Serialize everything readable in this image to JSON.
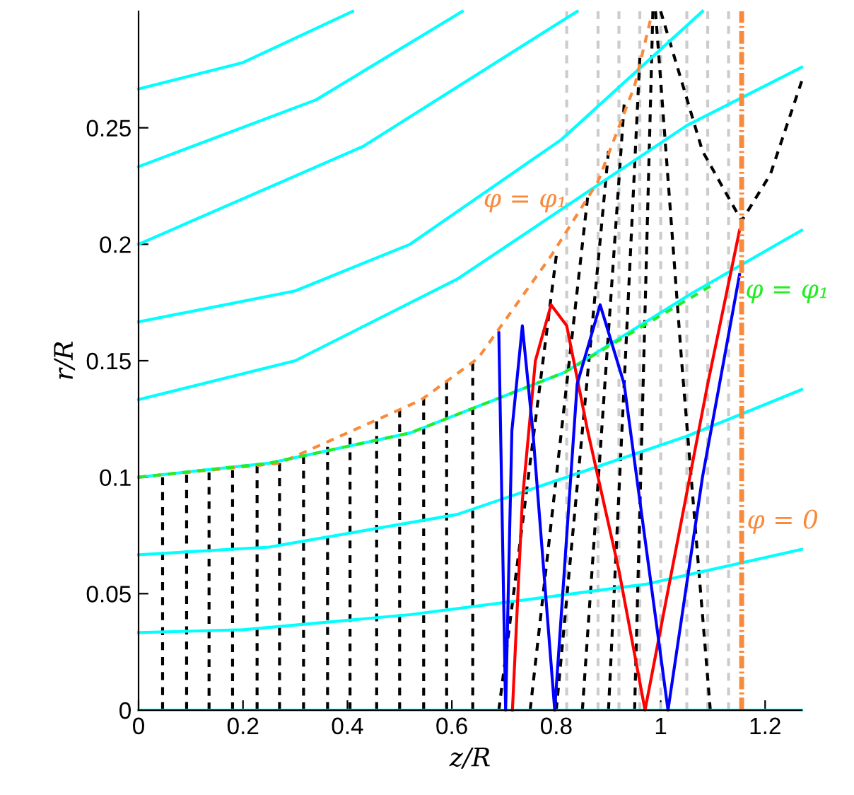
{
  "chart_data": {
    "type": "line",
    "xlabel": "z/R",
    "ylabel": "r/R",
    "xlim": [
      0,
      1.27
    ],
    "ylim": [
      0,
      0.3
    ],
    "xticks": [
      0,
      0.2,
      0.4,
      0.6,
      0.8,
      1,
      1.2
    ],
    "yticks": [
      0,
      0.05,
      0.1,
      0.15,
      0.2,
      0.25
    ],
    "grid": false,
    "legend": false,
    "ref_lines": [
      {
        "axis": "x",
        "value": 1.155,
        "color": "#f98a3c",
        "line_style": "dashdot"
      }
    ],
    "annotations": [
      "φ = 0"
    ],
    "series": [
      {
        "color": "#cccccc",
        "line_style": "dashed",
        "x": [
          0.82,
          0.82
        ],
        "values": [
          0,
          0.3
        ]
      },
      {
        "color": "#cccccc",
        "line_style": "dashed",
        "x": [
          0.88,
          0.88
        ],
        "values": [
          0,
          0.3
        ]
      },
      {
        "color": "#cccccc",
        "line_style": "dashed",
        "x": [
          0.92,
          0.92
        ],
        "values": [
          0,
          0.3
        ]
      },
      {
        "color": "#cccccc",
        "line_style": "dashed",
        "x": [
          0.96,
          0.96
        ],
        "values": [
          0,
          0.3
        ]
      },
      {
        "color": "#cccccc",
        "line_style": "dashed",
        "x": [
          1.0,
          1.0
        ],
        "values": [
          0,
          0.3
        ]
      },
      {
        "color": "#cccccc",
        "line_style": "dashed",
        "x": [
          1.05,
          1.05
        ],
        "values": [
          0,
          0.3
        ]
      },
      {
        "color": "#cccccc",
        "line_style": "dashed",
        "x": [
          1.09,
          1.09
        ],
        "values": [
          0,
          0.3
        ]
      },
      {
        "color": "#cccccc",
        "line_style": "dashed",
        "x": [
          1.13,
          1.13
        ],
        "values": [
          0,
          0.3
        ]
      },
      {
        "color": "#000000",
        "line_style": "dashed",
        "x": [
          0.046,
          0.046
        ],
        "values": [
          0,
          0.1
        ]
      },
      {
        "color": "#000000",
        "line_style": "dashed",
        "x": [
          0.092,
          0.092
        ],
        "values": [
          0,
          0.101
        ]
      },
      {
        "color": "#000000",
        "line_style": "dashed",
        "x": [
          0.135,
          0.135
        ],
        "values": [
          0,
          0.102
        ]
      },
      {
        "color": "#000000",
        "line_style": "dashed",
        "x": [
          0.18,
          0.18
        ],
        "values": [
          0,
          0.103
        ]
      },
      {
        "color": "#000000",
        "line_style": "dashed",
        "x": [
          0.227,
          0.227
        ],
        "values": [
          0,
          0.105
        ]
      },
      {
        "color": "#000000",
        "line_style": "dashed",
        "x": [
          0.27,
          0.27
        ],
        "values": [
          0,
          0.106
        ]
      },
      {
        "color": "#000000",
        "line_style": "dashed",
        "x": [
          0.316,
          0.316
        ],
        "values": [
          0,
          0.109
        ]
      },
      {
        "color": "#000000",
        "line_style": "dashed",
        "x": [
          0.362,
          0.362
        ],
        "values": [
          0,
          0.113
        ]
      },
      {
        "color": "#000000",
        "line_style": "dashed",
        "x": [
          0.405,
          0.405
        ],
        "values": [
          0,
          0.117
        ]
      },
      {
        "color": "#000000",
        "line_style": "dashed",
        "x": [
          0.456,
          0.456
        ],
        "values": [
          0,
          0.124
        ]
      },
      {
        "color": "#000000",
        "line_style": "dashed",
        "x": [
          0.5,
          0.5
        ],
        "values": [
          0,
          0.129
        ]
      },
      {
        "color": "#000000",
        "line_style": "dashed",
        "x": [
          0.546,
          0.546
        ],
        "values": [
          0,
          0.134
        ]
      },
      {
        "color": "#000000",
        "line_style": "dashed",
        "x": [
          0.59,
          0.59
        ],
        "values": [
          0,
          0.141
        ]
      },
      {
        "color": "#000000",
        "line_style": "dashed",
        "x": [
          0.64,
          0.64
        ],
        "values": [
          0,
          0.149
        ]
      },
      {
        "color": "#000000",
        "line_style": "dashed",
        "x": [
          0.69,
          0.8
        ],
        "values": [
          0,
          0.195
        ]
      },
      {
        "color": "#000000",
        "line_style": "dashed",
        "x": [
          0.75,
          0.86
        ],
        "values": [
          0,
          0.22
        ]
      },
      {
        "color": "#000000",
        "line_style": "dashed",
        "x": [
          0.8,
          0.9
        ],
        "values": [
          0,
          0.24
        ]
      },
      {
        "color": "#000000",
        "line_style": "dashed",
        "x": [
          0.85,
          0.93
        ],
        "values": [
          0,
          0.26
        ]
      },
      {
        "color": "#000000",
        "line_style": "dashed",
        "x": [
          0.9,
          0.96
        ],
        "values": [
          0,
          0.28
        ]
      },
      {
        "color": "#000000",
        "line_style": "dashed",
        "x": [
          0.95,
          0.985
        ],
        "values": [
          0,
          0.3
        ]
      },
      {
        "color": "#000000",
        "line_style": "dashed",
        "x": [
          1.095,
          1.04,
          0.99
        ],
        "values": [
          0,
          0.15,
          0.3
        ]
      },
      {
        "color": "#000000",
        "line_style": "dashed",
        "x": [
          1.0,
          1.08,
          1.155,
          1.21,
          1.27
        ],
        "values": [
          0.3,
          0.24,
          0.21,
          0.23,
          0.27
        ]
      },
      {
        "color": "#00ffff",
        "line_style": "solid",
        "x": [
          0,
          1.27
        ],
        "values": [
          0,
          0
        ]
      },
      {
        "color": "#00ffff",
        "line_style": "solid",
        "x": [
          0,
          0.2,
          0.52,
          0.97,
          1.27
        ],
        "values": [
          0.0333,
          0.0345,
          0.041,
          0.054,
          0.069
        ]
      },
      {
        "color": "#00ffff",
        "line_style": "solid",
        "x": [
          0,
          0.25,
          0.61,
          1.05,
          1.27
        ],
        "values": [
          0.0667,
          0.07,
          0.084,
          0.1176,
          0.1376
        ]
      },
      {
        "color": "#00ffff",
        "line_style": "solid",
        "x": [
          0,
          0.25,
          0.52,
          0.816,
          1.06,
          1.27
        ],
        "values": [
          0.1,
          0.106,
          0.119,
          0.145,
          0.179,
          0.206
        ]
      },
      {
        "color": "#00ffff",
        "line_style": "solid",
        "x": [
          0,
          0.3,
          0.61,
          1.05,
          1.27
        ],
        "values": [
          0.1333,
          0.15,
          0.185,
          0.251,
          0.276
        ]
      },
      {
        "color": "#00ffff",
        "line_style": "solid",
        "x": [
          0,
          0.3,
          0.52,
          0.81,
          1.08
        ],
        "values": [
          0.1667,
          0.18,
          0.2,
          0.245,
          0.3
        ]
      },
      {
        "color": "#00ffff",
        "line_style": "solid",
        "x": [
          0,
          0.43,
          0.84
        ],
        "values": [
          0.2,
          0.242,
          0.3
        ]
      },
      {
        "color": "#00ffff",
        "line_style": "solid",
        "x": [
          0,
          0.34,
          0.62
        ],
        "values": [
          0.2333,
          0.262,
          0.3
        ]
      },
      {
        "color": "#00ffff",
        "line_style": "solid",
        "x": [
          0,
          0.2,
          0.41
        ],
        "values": [
          0.2667,
          0.278,
          0.3
        ]
      },
      {
        "name": "φ = φ₁",
        "color": "#f98a3c",
        "line_style": "dashed",
        "x": [
          0,
          0.27,
          0.54,
          0.65,
          0.79,
          0.88,
          0.95,
          0.98
        ],
        "values": [
          0.1,
          0.106,
          0.133,
          0.151,
          0.195,
          0.227,
          0.268,
          0.296
        ]
      },
      {
        "name": "φ = φ₁",
        "color": "#22ee22",
        "line_style": "dashed",
        "x": [
          0,
          0.25,
          0.52,
          0.816,
          1.095
        ],
        "values": [
          0.1,
          0.106,
          0.119,
          0.145,
          0.182
        ]
      },
      {
        "color": "#ff0000",
        "line_style": "solid",
        "x": [
          0.716,
          0.735,
          0.76,
          0.79,
          0.82,
          0.86,
          0.92,
          0.97,
          1.03,
          1.09,
          1.151
        ],
        "values": [
          0,
          0.09,
          0.15,
          0.174,
          0.165,
          0.12,
          0.06,
          0,
          0.07,
          0.14,
          0.206
        ]
      },
      {
        "color": "#0000ff",
        "line_style": "solid",
        "x": [
          0.69,
          0.703,
          0.715,
          0.735,
          0.755,
          0.797,
          0.84,
          0.884,
          0.93,
          1.014,
          1.08,
          1.151
        ],
        "values": [
          0.162,
          0,
          0.12,
          0.165,
          0.12,
          0,
          0.14,
          0.174,
          0.14,
          0,
          0.1,
          0.187
        ]
      }
    ]
  }
}
